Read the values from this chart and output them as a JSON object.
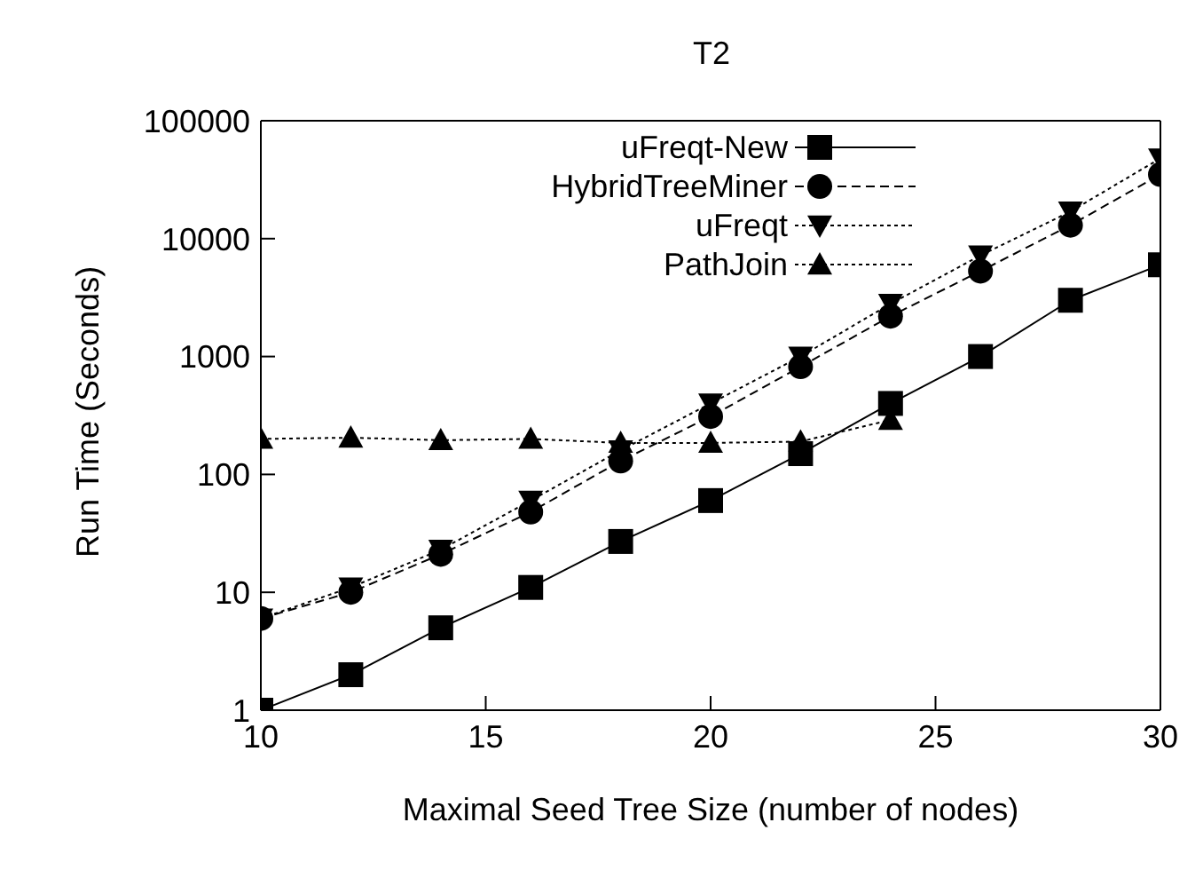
{
  "chart_data": {
    "type": "line",
    "title": "T2",
    "xlabel": "Maximal Seed Tree Size (number of nodes)",
    "ylabel": "Run Time (Seconds)",
    "x": [
      10,
      12,
      14,
      16,
      18,
      20,
      22,
      24,
      26,
      28,
      30
    ],
    "series": [
      {
        "name": "uFreqt-New",
        "color": "#000000",
        "marker": "square",
        "line_style": "solid",
        "values": [
          1,
          2,
          5,
          11,
          27,
          60,
          150,
          400,
          1000,
          3000,
          6000
        ]
      },
      {
        "name": "HybridTreeMiner",
        "color": "#000000",
        "marker": "circle",
        "line_style": "dashed",
        "values": [
          6,
          10,
          21,
          48,
          130,
          310,
          820,
          2200,
          5300,
          13000,
          35000
        ]
      },
      {
        "name": "uFreqt",
        "color": "#000000",
        "marker": "triangle-down",
        "line_style": "dotted",
        "values": [
          6,
          11,
          23,
          60,
          160,
          400,
          1000,
          2800,
          7200,
          17000,
          48000
        ]
      },
      {
        "name": "PathJoin",
        "color": "#000000",
        "marker": "triangle",
        "line_style": "dotted",
        "values": [
          200,
          205,
          195,
          200,
          185,
          185,
          190,
          290,
          null,
          null,
          null
        ]
      }
    ],
    "xlim": [
      10,
      30
    ],
    "xticks": [
      10,
      15,
      20,
      25,
      30
    ],
    "ylim": [
      1,
      100000
    ],
    "yticks": [
      1,
      10,
      100,
      1000,
      10000,
      100000
    ],
    "log": "y",
    "grid": false,
    "legend": "top"
  }
}
